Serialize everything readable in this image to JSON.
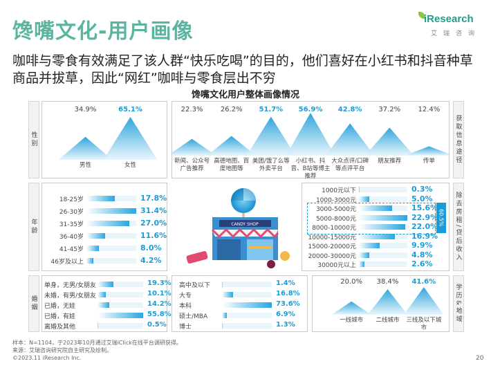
{
  "title": "馋嘴文化-用户画像",
  "lead": "咖啡与零食有效满足了该人群“快乐吃喝”的目的，他们喜好在小红书和抖音种草商品并拔草，因此“网红”咖啡与零食层出不穷",
  "logo": {
    "word": "iResearch",
    "sub": "艾瑞咨询"
  },
  "chart_title": "馋嘴文化用户整体画像情况",
  "side_labels": {
    "gender": "性别",
    "channel": "获取信息途径",
    "age": "年龄",
    "income": "除去房租/贷后收入",
    "marriage": "婚姻",
    "edu_city": "学历&地域"
  },
  "income_highlight": "60.5%",
  "colors": {
    "accent": "#1a9bd7",
    "title": "#5ab4a0"
  },
  "chart_data": [
    {
      "type": "area",
      "title": "性别",
      "categories": [
        "男性",
        "女性"
      ],
      "labels": [
        "34.9%",
        "65.1%"
      ],
      "values": [
        34.9,
        65.1
      ]
    },
    {
      "type": "area",
      "title": "获取信息途径",
      "categories": [
        "新闻、公众号广告推荐",
        "高德地图、百度地图等",
        "美团/饿了么等外卖平台",
        "小红书、抖音、B站等博主推荐",
        "大众点评/口碑等点评平台",
        "朋友推荐",
        "传单"
      ],
      "labels": [
        "22.3%",
        "26.2%",
        "51.7%",
        "56.9%",
        "42.8%",
        "37.2%",
        "12.4%"
      ],
      "values": [
        22.3,
        26.2,
        51.7,
        56.9,
        42.8,
        37.2,
        12.4
      ]
    },
    {
      "type": "bar",
      "title": "年龄",
      "categories": [
        "18-25岁",
        "26-30岁",
        "31-35岁",
        "36-40岁",
        "41-45岁",
        "46岁及以上"
      ],
      "labels": [
        "17.8%",
        "31.4%",
        "27.0%",
        "11.6%",
        "8.0%",
        "4.2%"
      ],
      "values": [
        17.8,
        31.4,
        27.0,
        11.6,
        8.0,
        4.2
      ]
    },
    {
      "type": "bar",
      "title": "除去房租/贷后收入",
      "categories": [
        "1000元以下",
        "1000-3000元",
        "3000-5000元",
        "5000-8000元",
        "8000-10000元",
        "10000-15000元",
        "15000-20000元",
        "20000-30000元",
        "30000元以上"
      ],
      "labels": [
        "0.3%",
        "5.0%",
        "15.6%",
        "22.9%",
        "22.0%",
        "16.9%",
        "9.9%",
        "4.8%",
        "2.6%"
      ],
      "values": [
        0.3,
        5.0,
        15.6,
        22.9,
        22.0,
        16.9,
        9.9,
        4.8,
        2.6
      ]
    },
    {
      "type": "bar",
      "title": "婚姻",
      "categories": [
        "单身，无男/女朋友",
        "未婚，有男/女朋友",
        "已婚，无娃",
        "已婚，有娃",
        "离婚及其他"
      ],
      "labels": [
        "19.3%",
        "10.1%",
        "14.2%",
        "55.8%",
        "0.5%"
      ],
      "values": [
        19.3,
        10.1,
        14.2,
        55.8,
        0.5
      ]
    },
    {
      "type": "bar",
      "title": "学历",
      "categories": [
        "高中及以下",
        "大专",
        "本科",
        "硕士/MBA",
        "博士"
      ],
      "labels": [
        "1.4%",
        "16.8%",
        "73.6%",
        "6.9%",
        "1.3%"
      ],
      "values": [
        1.4,
        16.8,
        73.6,
        6.9,
        1.3
      ]
    },
    {
      "type": "area",
      "title": "地域",
      "categories": [
        "一线城市",
        "二线城市",
        "三线及以下城市"
      ],
      "labels": [
        "20.0%",
        "38.4%",
        "41.6%"
      ],
      "values": [
        20.0,
        38.4,
        41.6
      ]
    }
  ],
  "footer": {
    "line1": "样本：N=1104，于2023年10月通过艾瑞iClick在线平台调研获得。",
    "line2": "来源：艾瑞咨询研究院自主研究及绘制。",
    "copyright": "©2023.11 iResearch Inc."
  },
  "page_number": "20"
}
